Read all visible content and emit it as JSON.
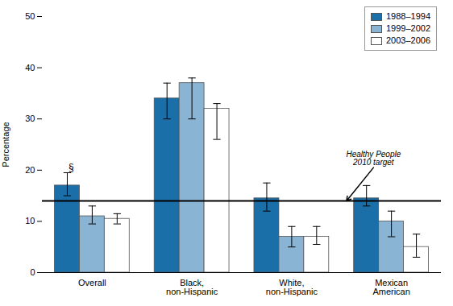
{
  "chart_data": {
    "type": "bar",
    "categories": [
      "Overall",
      "Black,\nnon-Hispanic",
      "White,\nnon-Hispanic",
      "Mexican\nAmerican"
    ],
    "series": [
      {
        "name": "1988–1994",
        "color": "#1a6fa8",
        "values": [
          17,
          34,
          14.5,
          14.5
        ],
        "yerr_low": [
          2.0,
          4.0,
          2.5,
          1.5
        ],
        "yerr_high": [
          2.5,
          3.0,
          3.0,
          2.5
        ]
      },
      {
        "name": "1999–2002",
        "color": "#8ab4d4",
        "values": [
          11,
          37,
          7,
          10
        ],
        "yerr_low": [
          1.5,
          7.0,
          2.0,
          3.0
        ],
        "yerr_high": [
          2.0,
          1.0,
          2.0,
          2.0
        ]
      },
      {
        "name": "2003–2006",
        "color": "#ffffff",
        "values": [
          10.5,
          32,
          7,
          5
        ],
        "yerr_low": [
          1.0,
          6.0,
          1.5,
          2.0
        ],
        "yerr_high": [
          1.0,
          1.0,
          2.0,
          2.5
        ]
      }
    ],
    "ylabel": "Percentage",
    "ylim": [
      0,
      50
    ],
    "yticks": [
      0,
      10,
      20,
      30,
      40,
      50
    ],
    "grid": false,
    "legend": "upper right",
    "annotations": [
      {
        "text": "Healthy People\n2010 target",
        "y": 14
      },
      {
        "text": "§",
        "series": "1988–1994",
        "category": "Overall"
      }
    ]
  }
}
